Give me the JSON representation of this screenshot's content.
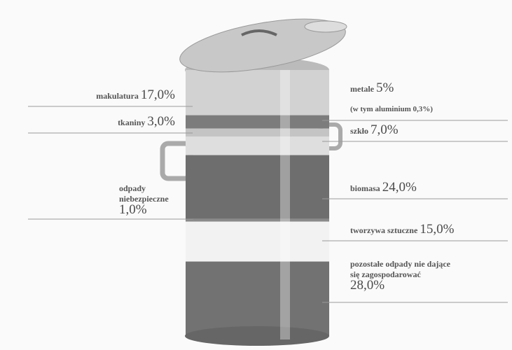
{
  "chart_data": {
    "type": "can",
    "categories": [
      "makulatura",
      "metale",
      "tkaniny",
      "szkło",
      "biomasa",
      "odpady niebezpieczne",
      "tworzywa sztuczne",
      "pozostałe odpady nie dające się zagospodarować"
    ],
    "values": [
      17,
      5,
      3,
      7,
      24,
      1,
      15,
      28
    ],
    "value_labels": [
      "17,0%",
      "5%",
      "3,0%",
      "7,0%",
      "24,0%",
      "1,0%",
      "15,0%",
      "28,0%"
    ],
    "colors": [
      "#d2d2d2",
      "#7c7c7c",
      "#c4c4c4",
      "#dedede",
      "#6e6e6e",
      "#8a8a8a",
      "#f2f2f2",
      "#727272"
    ],
    "annotation": "(w tym aluminium 0,3%)"
  }
}
